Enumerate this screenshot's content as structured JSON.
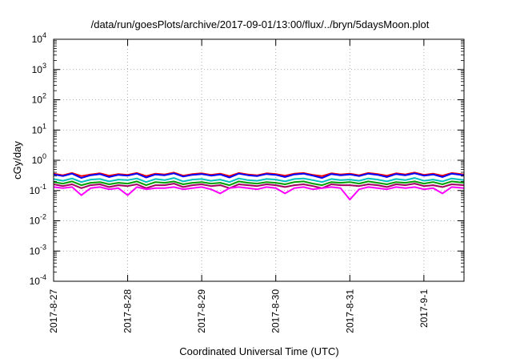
{
  "chart_data": {
    "type": "line",
    "title": "/data/run/goesPlots/archive/2017-09-01/13:00/flux/../bryn/5daysMoon.plot",
    "xlabel": "Coordinated Universal Time (UTC)",
    "ylabel": "cGy/day",
    "yscale": "log",
    "ylim": [
      0.0001,
      10000
    ],
    "ytick_labels": [
      {
        "base": "10",
        "exp": "-4"
      },
      {
        "base": "10",
        "exp": "-3"
      },
      {
        "base": "10",
        "exp": "-2"
      },
      {
        "base": "10",
        "exp": "-1"
      },
      {
        "base": "10",
        "exp": "0"
      },
      {
        "base": "10",
        "exp": "1"
      },
      {
        "base": "10",
        "exp": "2"
      },
      {
        "base": "10",
        "exp": "3"
      },
      {
        "base": "10",
        "exp": "4"
      }
    ],
    "x_tick_labels": [
      "2017-8-27",
      "2017-8-28",
      "2017-8-29",
      "2017-8-30",
      "2017-8-31",
      "2017-9-1"
    ],
    "xlim": [
      "2017-08-27T00:00",
      "2017-09-01T13:00"
    ],
    "grid": true,
    "legend": "none",
    "x": [
      "2017-08-27T00:00",
      "2017-08-27T03:00",
      "2017-08-27T06:00",
      "2017-08-27T09:00",
      "2017-08-27T12:00",
      "2017-08-27T15:00",
      "2017-08-27T18:00",
      "2017-08-27T21:00",
      "2017-08-28T00:00",
      "2017-08-28T03:00",
      "2017-08-28T06:00",
      "2017-08-28T09:00",
      "2017-08-28T12:00",
      "2017-08-28T15:00",
      "2017-08-28T18:00",
      "2017-08-28T21:00",
      "2017-08-29T00:00",
      "2017-08-29T03:00",
      "2017-08-29T06:00",
      "2017-08-29T09:00",
      "2017-08-29T12:00",
      "2017-08-29T15:00",
      "2017-08-29T18:00",
      "2017-08-29T21:00",
      "2017-08-30T00:00",
      "2017-08-30T03:00",
      "2017-08-30T06:00",
      "2017-08-30T09:00",
      "2017-08-30T12:00",
      "2017-08-30T15:00",
      "2017-08-30T18:00",
      "2017-08-30T21:00",
      "2017-08-31T00:00",
      "2017-08-31T03:00",
      "2017-08-31T06:00",
      "2017-08-31T09:00",
      "2017-08-31T12:00",
      "2017-08-31T15:00",
      "2017-08-31T18:00",
      "2017-08-31T21:00",
      "2017-09-01T00:00",
      "2017-09-01T03:00",
      "2017-09-01T06:00",
      "2017-09-01T09:00",
      "2017-09-01T13:00"
    ],
    "series": [
      {
        "color": "#ff0000",
        "values": [
          0.36,
          0.32,
          0.38,
          0.3,
          0.34,
          0.37,
          0.31,
          0.35,
          0.33,
          0.38,
          0.3,
          0.36,
          0.34,
          0.39,
          0.31,
          0.35,
          0.37,
          0.33,
          0.36,
          0.3,
          0.38,
          0.34,
          0.32,
          0.37,
          0.35,
          0.31,
          0.36,
          0.38,
          0.33,
          0.3,
          0.37,
          0.34,
          0.36,
          0.32,
          0.38,
          0.35,
          0.31,
          0.37,
          0.34,
          0.39,
          0.33,
          0.36,
          0.31,
          0.38,
          0.34
        ]
      },
      {
        "color": "#0000ff",
        "values": [
          0.34,
          0.3,
          0.36,
          0.26,
          0.32,
          0.35,
          0.28,
          0.33,
          0.31,
          0.36,
          0.27,
          0.34,
          0.32,
          0.37,
          0.29,
          0.33,
          0.35,
          0.31,
          0.34,
          0.27,
          0.36,
          0.32,
          0.3,
          0.35,
          0.33,
          0.28,
          0.34,
          0.36,
          0.31,
          0.26,
          0.35,
          0.32,
          0.34,
          0.3,
          0.36,
          0.33,
          0.28,
          0.35,
          0.32,
          0.37,
          0.31,
          0.34,
          0.28,
          0.36,
          0.32
        ]
      },
      {
        "color": "#00c0c0",
        "values": [
          0.24,
          0.21,
          0.25,
          0.19,
          0.23,
          0.24,
          0.2,
          0.23,
          0.22,
          0.25,
          0.19,
          0.24,
          0.22,
          0.26,
          0.2,
          0.23,
          0.24,
          0.21,
          0.23,
          0.19,
          0.25,
          0.22,
          0.21,
          0.24,
          0.23,
          0.2,
          0.24,
          0.25,
          0.22,
          0.19,
          0.24,
          0.22,
          0.23,
          0.21,
          0.25,
          0.23,
          0.2,
          0.24,
          0.22,
          0.26,
          0.21,
          0.23,
          0.2,
          0.25,
          0.22
        ]
      },
      {
        "color": "#00a000",
        "values": [
          0.19,
          0.17,
          0.2,
          0.15,
          0.18,
          0.19,
          0.16,
          0.18,
          0.17,
          0.2,
          0.15,
          0.19,
          0.18,
          0.2,
          0.16,
          0.18,
          0.19,
          0.17,
          0.18,
          0.15,
          0.2,
          0.18,
          0.17,
          0.19,
          0.18,
          0.16,
          0.19,
          0.2,
          0.17,
          0.15,
          0.19,
          0.18,
          0.19,
          0.17,
          0.2,
          0.18,
          0.16,
          0.19,
          0.18,
          0.2,
          0.17,
          0.19,
          0.16,
          0.2,
          0.18
        ]
      },
      {
        "color": "#a00060",
        "values": [
          0.16,
          0.14,
          0.16,
          0.12,
          0.15,
          0.16,
          0.13,
          0.15,
          0.14,
          0.16,
          0.12,
          0.15,
          0.15,
          0.17,
          0.13,
          0.15,
          0.16,
          0.14,
          0.15,
          0.12,
          0.16,
          0.15,
          0.14,
          0.16,
          0.15,
          0.13,
          0.15,
          0.16,
          0.14,
          0.12,
          0.16,
          0.15,
          0.15,
          0.14,
          0.16,
          0.15,
          0.13,
          0.16,
          0.15,
          0.17,
          0.14,
          0.15,
          0.13,
          0.16,
          0.15
        ]
      },
      {
        "color": "#ff00ff",
        "values": [
          0.13,
          0.12,
          0.13,
          0.07,
          0.12,
          0.13,
          0.11,
          0.12,
          0.07,
          0.13,
          0.11,
          0.12,
          0.12,
          0.13,
          0.11,
          0.12,
          0.13,
          0.11,
          0.08,
          0.12,
          0.13,
          0.12,
          0.11,
          0.13,
          0.12,
          0.08,
          0.12,
          0.13,
          0.11,
          0.12,
          0.13,
          0.12,
          0.05,
          0.11,
          0.13,
          0.12,
          0.11,
          0.13,
          0.12,
          0.13,
          0.11,
          0.12,
          0.08,
          0.13,
          0.12
        ]
      }
    ]
  }
}
